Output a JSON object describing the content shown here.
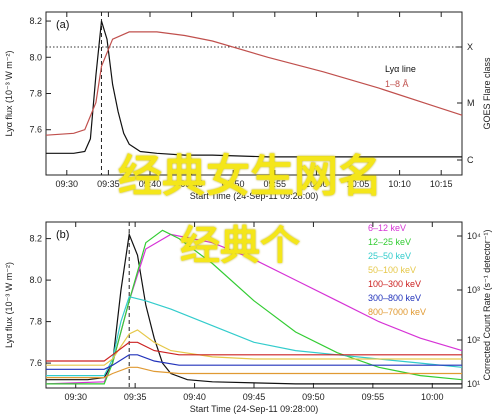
{
  "overlay": {
    "title": "经典女生网名",
    "subtitle": "经典个"
  },
  "chart_data": [
    {
      "type": "line",
      "panel_label": "(a)",
      "xlabel": "Start Time (24-Sep-11 09:28:00)",
      "ylabel": "Lyα flux (10⁻³ W m⁻²)",
      "right_label": "GOES Flare class",
      "xlim": [
        9.5,
        10.25
      ],
      "ylim": [
        7.35,
        8.25
      ],
      "x_ticks": [
        "09:30",
        "09:35",
        "09:40",
        "09:45",
        "09:50",
        "09:55",
        "10:00",
        "10:05",
        "10:10",
        "10:15"
      ],
      "y_ticks": [
        "7.6",
        "7.8",
        "8.0",
        "8.2"
      ],
      "right_ticks": [
        "X",
        "M",
        "C"
      ],
      "legend": {
        "position": "top-right"
      },
      "flare_peak_time": 9.6,
      "series": [
        {
          "name": "Lyα line",
          "color": "#111111",
          "x": [
            9.5,
            9.55,
            9.57,
            9.58,
            9.59,
            9.6,
            9.61,
            9.62,
            9.63,
            9.64,
            9.65,
            9.67,
            9.7,
            9.75,
            9.8,
            9.9,
            10.0,
            10.1,
            10.25
          ],
          "y": [
            7.47,
            7.47,
            7.48,
            7.55,
            7.9,
            8.2,
            8.1,
            7.85,
            7.7,
            7.58,
            7.52,
            7.48,
            7.47,
            7.46,
            7.46,
            7.45,
            7.45,
            7.45,
            7.45
          ]
        },
        {
          "name": "1–8 Å",
          "color": "#c0504d",
          "x": [
            9.5,
            9.55,
            9.57,
            9.59,
            9.6,
            9.62,
            9.65,
            9.7,
            9.75,
            9.8,
            9.9,
            10.0,
            10.1,
            10.2,
            10.25
          ],
          "y": [
            7.57,
            7.58,
            7.6,
            7.75,
            7.95,
            8.1,
            8.14,
            8.14,
            8.12,
            8.09,
            8.0,
            7.92,
            7.83,
            7.73,
            7.68
          ]
        }
      ]
    },
    {
      "type": "line",
      "panel_label": "(b)",
      "xlabel": "Start Time (24-Sep-11 09:28:00)",
      "ylabel": "Lyα flux (10⁻³ W m⁻²)",
      "right_label": "Corrected Count Rate (s⁻¹ detector⁻¹)",
      "xlim": [
        9.5,
        10.0
      ],
      "ylim": [
        7.48,
        8.28
      ],
      "x_ticks": [
        "09:30",
        "09:35",
        "09:40",
        "09:45",
        "09:50",
        "09:55",
        "10:00"
      ],
      "y_ticks": [
        "7.6",
        "7.8",
        "8.0",
        "8.2"
      ],
      "right_ticks": [
        "10⁴",
        "10³",
        "10²",
        "10¹"
      ],
      "legend": {
        "position": "top-right"
      },
      "flare_peak_time": 9.6,
      "series": [
        {
          "name": "Lyα line",
          "color": "#111111",
          "x": [
            9.5,
            9.55,
            9.57,
            9.58,
            9.59,
            9.6,
            9.61,
            9.62,
            9.63,
            9.64,
            9.65,
            9.67,
            9.7,
            9.8,
            9.9,
            10.0
          ],
          "y": [
            7.52,
            7.52,
            7.53,
            7.6,
            7.95,
            8.22,
            8.12,
            7.88,
            7.72,
            7.6,
            7.55,
            7.52,
            7.51,
            7.5,
            7.5,
            7.5
          ]
        },
        {
          "name": "6–12 keV",
          "color": "#d633d6",
          "x": [
            9.5,
            9.57,
            9.58,
            9.6,
            9.62,
            9.65,
            9.7,
            9.75,
            9.8,
            9.85,
            9.9,
            9.95,
            10.0
          ],
          "y": [
            7.5,
            7.51,
            7.6,
            7.9,
            8.15,
            8.22,
            8.18,
            8.1,
            8.0,
            7.9,
            7.8,
            7.72,
            7.66
          ]
        },
        {
          "name": "12–25 keV",
          "color": "#33cc33",
          "x": [
            9.5,
            9.57,
            9.58,
            9.6,
            9.62,
            9.64,
            9.66,
            9.7,
            9.75,
            9.8,
            9.85,
            9.9,
            9.95,
            10.0
          ],
          "y": [
            7.5,
            7.5,
            7.6,
            7.9,
            8.18,
            8.24,
            8.2,
            8.08,
            7.9,
            7.75,
            7.65,
            7.58,
            7.54,
            7.52
          ]
        },
        {
          "name": "25–50 keV",
          "color": "#33cccc",
          "x": [
            9.5,
            9.57,
            9.58,
            9.59,
            9.6,
            9.62,
            9.65,
            9.7,
            9.75,
            9.8,
            9.85,
            9.9,
            9.95,
            10.0
          ],
          "y": [
            7.54,
            7.54,
            7.62,
            7.8,
            7.92,
            7.9,
            7.86,
            7.78,
            7.7,
            7.66,
            7.64,
            7.62,
            7.6,
            7.58
          ]
        },
        {
          "name": "50–100 keV",
          "color": "#e6c84a",
          "x": [
            9.5,
            9.57,
            9.58,
            9.6,
            9.61,
            9.63,
            9.65,
            9.7,
            9.75,
            9.8,
            9.85,
            9.9,
            9.95,
            10.0
          ],
          "y": [
            7.59,
            7.59,
            7.62,
            7.74,
            7.76,
            7.7,
            7.66,
            7.63,
            7.62,
            7.62,
            7.62,
            7.62,
            7.62,
            7.62
          ]
        },
        {
          "name": "100–300 keV",
          "color": "#cc2222",
          "x": [
            9.5,
            9.57,
            9.58,
            9.6,
            9.61,
            9.63,
            9.66,
            9.7,
            9.8,
            9.9,
            10.0
          ],
          "y": [
            7.61,
            7.61,
            7.64,
            7.7,
            7.7,
            7.66,
            7.64,
            7.64,
            7.64,
            7.64,
            7.64
          ]
        },
        {
          "name": "300–800 keV",
          "color": "#2233bb",
          "x": [
            9.5,
            9.57,
            9.58,
            9.6,
            9.61,
            9.63,
            9.66,
            9.7,
            9.8,
            9.9,
            10.0
          ],
          "y": [
            7.57,
            7.57,
            7.59,
            7.64,
            7.64,
            7.61,
            7.59,
            7.59,
            7.59,
            7.59,
            7.59
          ]
        },
        {
          "name": "800–7000 keV",
          "color": "#e09a33",
          "x": [
            9.5,
            9.57,
            9.58,
            9.6,
            9.61,
            9.63,
            9.66,
            9.7,
            9.8,
            9.9,
            10.0
          ],
          "y": [
            7.53,
            7.53,
            7.55,
            7.58,
            7.58,
            7.56,
            7.55,
            7.55,
            7.55,
            7.55,
            7.55
          ]
        }
      ]
    }
  ]
}
